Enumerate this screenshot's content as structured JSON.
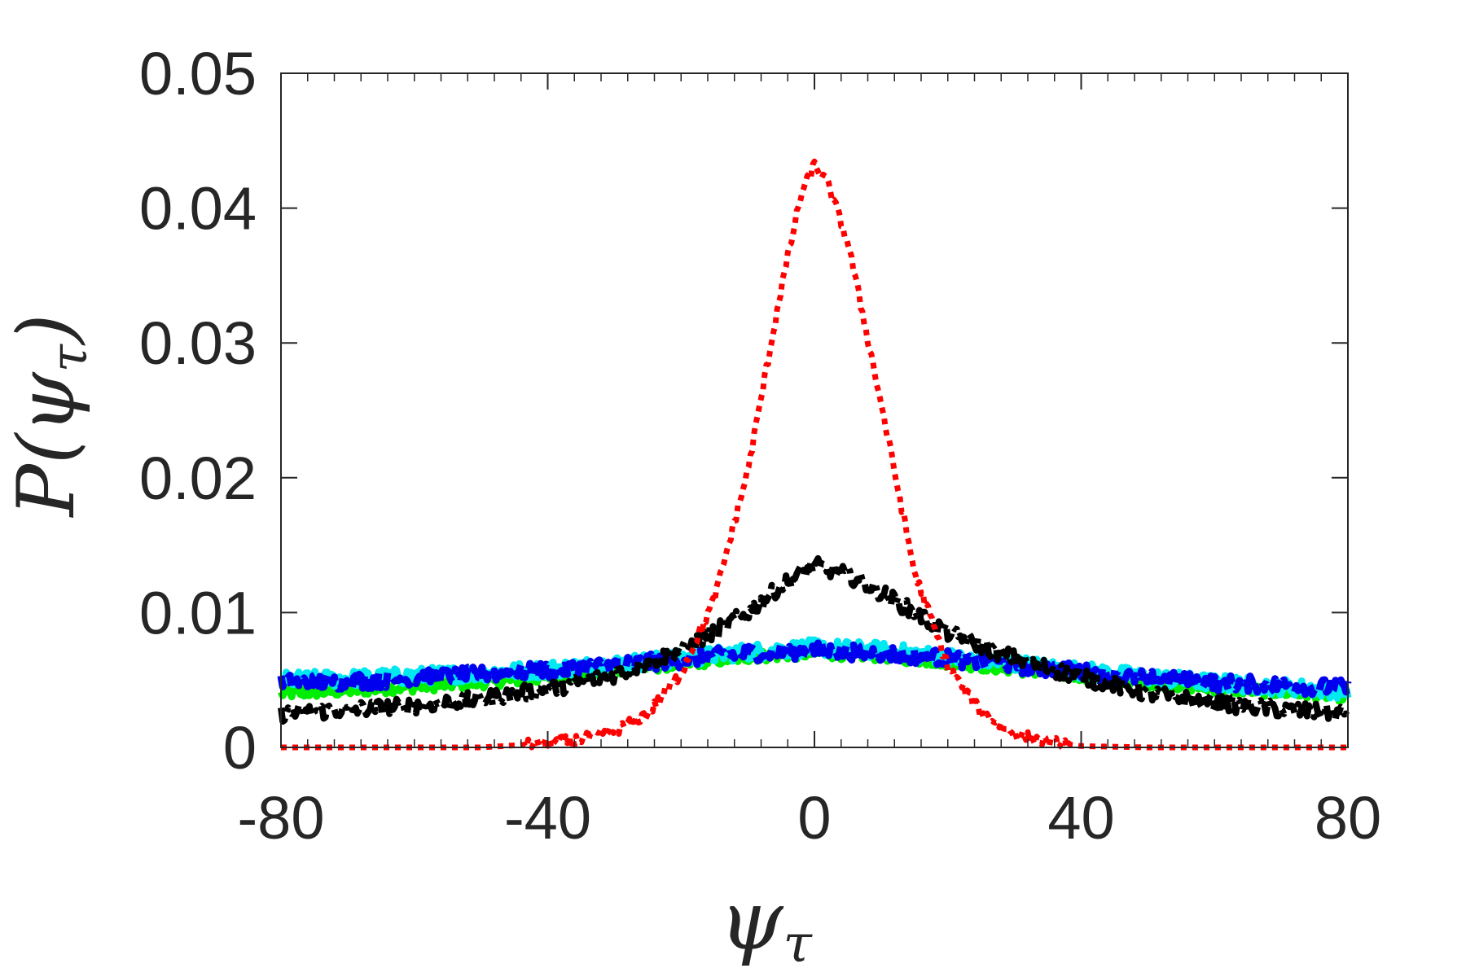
{
  "chart_data": {
    "type": "line",
    "title": "",
    "xlabel_main": "ψ",
    "xlabel_sub": "τ",
    "ylabel_prefix": "P(",
    "ylabel_main": "ψ",
    "ylabel_sub": "τ",
    "ylabel_suffix": ")",
    "xlim": [
      -80,
      80
    ],
    "ylim": [
      0,
      0.05
    ],
    "xticks": [
      -80,
      -40,
      0,
      40,
      80
    ],
    "xtick_labels": [
      "-80",
      "-40",
      "0",
      "40",
      "80"
    ],
    "yticks": [
      0,
      0.01,
      0.02,
      0.03,
      0.04,
      0.05
    ],
    "ytick_labels": [
      "0",
      "0.01",
      "0.02",
      "0.03",
      "0.04",
      "0.05"
    ],
    "grid": false,
    "series": [
      {
        "name": "green",
        "color": "#00ee00",
        "style": "solid",
        "x": [
          -80,
          -70,
          -60,
          -50,
          -40,
          -30,
          -20,
          -10,
          0,
          10,
          20,
          30,
          40,
          50,
          60,
          70,
          80
        ],
        "y": [
          0.004,
          0.0042,
          0.0045,
          0.0048,
          0.0052,
          0.0057,
          0.0062,
          0.0067,
          0.007,
          0.0068,
          0.0063,
          0.0058,
          0.0053,
          0.0048,
          0.0044,
          0.0041,
          0.0038
        ]
      },
      {
        "name": "cyan",
        "color": "#00e8f0",
        "style": "solid",
        "x": [
          -80,
          -70,
          -60,
          -50,
          -40,
          -30,
          -20,
          -10,
          0,
          10,
          20,
          30,
          40,
          50,
          60,
          70,
          80
        ],
        "y": [
          0.005,
          0.0051,
          0.0053,
          0.0055,
          0.0058,
          0.0062,
          0.0066,
          0.0071,
          0.0074,
          0.0072,
          0.0067,
          0.0062,
          0.0057,
          0.0052,
          0.0048,
          0.0045,
          0.0042
        ]
      },
      {
        "name": "blue",
        "color": "#0000ee",
        "style": "dashed",
        "x": [
          -80,
          -70,
          -60,
          -50,
          -40,
          -30,
          -20,
          -10,
          0,
          10,
          20,
          30,
          40,
          50,
          60,
          70,
          80
        ],
        "y": [
          0.0048,
          0.0049,
          0.0051,
          0.0054,
          0.0057,
          0.0061,
          0.0065,
          0.007,
          0.0072,
          0.007,
          0.0066,
          0.0061,
          0.0056,
          0.0051,
          0.0048,
          0.0046,
          0.0044
        ]
      },
      {
        "name": "black",
        "color": "#000000",
        "style": "dashdot",
        "x": [
          -80,
          -70,
          -60,
          -50,
          -40,
          -30,
          -20,
          -10,
          -5,
          0,
          5,
          10,
          15,
          20,
          30,
          40,
          50,
          60,
          70,
          80
        ],
        "y": [
          0.0025,
          0.0028,
          0.0031,
          0.0036,
          0.0043,
          0.0054,
          0.0072,
          0.01,
          0.012,
          0.0135,
          0.0128,
          0.0115,
          0.01,
          0.0085,
          0.0066,
          0.0052,
          0.004,
          0.0033,
          0.0028,
          0.0025
        ]
      },
      {
        "name": "red",
        "color": "#ff0000",
        "style": "dotted",
        "x": [
          -80,
          -50,
          -40,
          -35,
          -30,
          -25,
          -20,
          -15,
          -10,
          -5,
          -2,
          0,
          2,
          5,
          10,
          15,
          20,
          25,
          30,
          35,
          40,
          50,
          80
        ],
        "y": [
          0.0,
          0.0,
          0.0003,
          0.0006,
          0.0012,
          0.0025,
          0.0055,
          0.011,
          0.0205,
          0.034,
          0.041,
          0.0432,
          0.0418,
          0.0375,
          0.0255,
          0.013,
          0.006,
          0.0026,
          0.001,
          0.0004,
          0.0001,
          0.0,
          0.0
        ]
      }
    ]
  }
}
